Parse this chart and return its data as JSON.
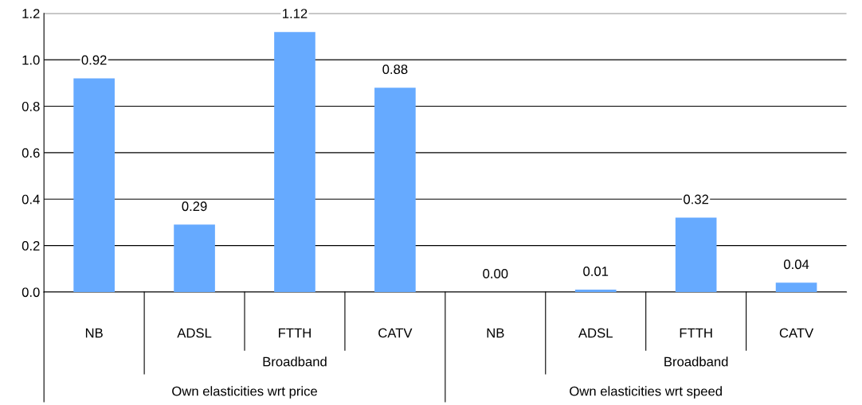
{
  "chart_data": {
    "type": "bar",
    "categories": [
      "NB",
      "ADSL",
      "FTTH",
      "CATV",
      "NB",
      "ADSL",
      "FTTH",
      "CATV"
    ],
    "values": [
      0.92,
      0.29,
      1.12,
      0.88,
      0.0,
      0.01,
      0.32,
      0.04
    ],
    "color": "#66aaff",
    "ylim": [
      0,
      1.2
    ],
    "yticks": [
      {
        "value": 0,
        "label": "0.0"
      },
      {
        "value": 0.2,
        "label": "0.2"
      },
      {
        "value": 0.4,
        "label": "0.4"
      },
      {
        "value": 0.6,
        "label": "0.6"
      },
      {
        "value": 0.8,
        "label": "0.8"
      },
      {
        "value": 1.0,
        "label": "1.0"
      },
      {
        "value": 1.2,
        "label": "1.2"
      }
    ],
    "grid": "y",
    "data_labels": true,
    "value_labels": [
      "0.92",
      "0.29",
      "1.12",
      "0.88",
      "0.00",
      "0.01",
      "0.32",
      "0.04"
    ],
    "annotations": [
      "Broadband",
      "Broadband",
      "Own elasticities wrt price",
      "Own elasticities wrt speed"
    ]
  }
}
